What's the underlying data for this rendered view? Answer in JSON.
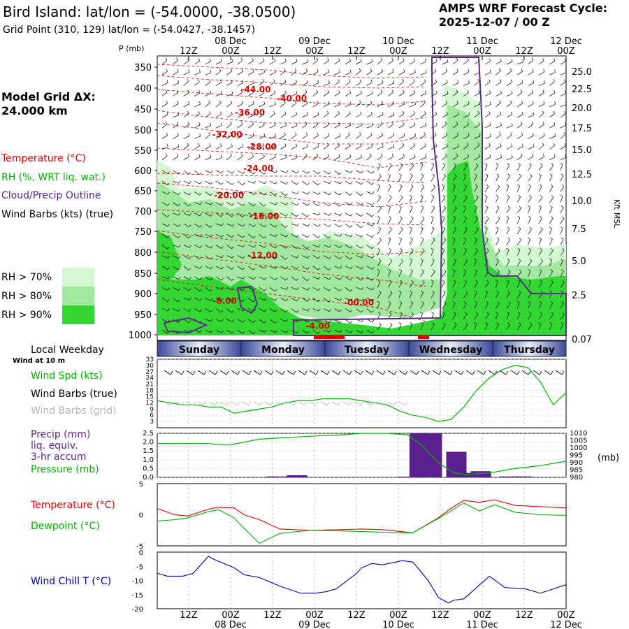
{
  "header": {
    "title": "Bird Island:  lat/lon = (-54.0000, -38.0500)",
    "grid_point": "Grid Point (310, 129) lat/lon = (-54.0427, -38.1457)",
    "cycle_label": "AMPS WRF Forecast Cycle:",
    "cycle_value": "2025-12-07 / 00  Z",
    "model_grid_label": "Model Grid ΔX:",
    "model_grid_value": " 24.000 km"
  },
  "legend": {
    "temperature": "Temperature (°C)",
    "rh": "RH (%, WRT liq. wat.)",
    "cloud": "Cloud/Precip Outline",
    "wind_barbs": "Wind Barbs (kts) (true)",
    "rh70": "RH > 70%",
    "rh80": "RH > 80%",
    "rh90": "RH > 90%",
    "rh70_color": "#d4f9d2",
    "rh80_color": "#a2e8a0",
    "rh90_color": "#34d634"
  },
  "time_axis": {
    "p_label": "P (mb)",
    "kft_label": "Kft MSL",
    "tick_labels": [
      "12Z",
      "00Z",
      "12Z",
      "00Z",
      "12Z",
      "00Z",
      "12Z",
      "00Z",
      "12Z",
      "00Z"
    ],
    "date_labels": [
      "08 Dec",
      "09 Dec",
      "10 Dec",
      "11 Dec",
      "12 Dec"
    ]
  },
  "weekday_bar": {
    "title": "Local Weekday",
    "days": [
      "Sunday",
      "Monday",
      "Tuesday",
      "Wednesday",
      "Thursday"
    ]
  },
  "chart_data": [
    {
      "type": "contour-profile",
      "title": "Time-height cross section",
      "pressure_levels": [
        350,
        400,
        450,
        500,
        550,
        600,
        650,
        700,
        750,
        800,
        850,
        900,
        950,
        1000
      ],
      "height_kft": [
        "25.0",
        "22.5",
        "20.0",
        "17.5",
        "15.0",
        "12.5",
        "10.0",
        "7.5",
        "5.0",
        "2.5",
        "0.07"
      ],
      "temperature_contour_labels": [
        {
          "label": "-44.00",
          "t": 1.3,
          "p": 410
        },
        {
          "label": "-40.00",
          "t": 1.73,
          "p": 432
        },
        {
          "label": "-36.00",
          "t": 1.23,
          "p": 465
        },
        {
          "label": "-32.00",
          "t": 0.96,
          "p": 518
        },
        {
          "label": "-28.00",
          "t": 1.37,
          "p": 548
        },
        {
          "label": "-24.00",
          "t": 1.33,
          "p": 602
        },
        {
          "label": "-20.00",
          "t": 0.98,
          "p": 668
        },
        {
          "label": "-16.00",
          "t": 1.4,
          "p": 720
        },
        {
          "label": "-12.00",
          "t": 1.38,
          "p": 814
        },
        {
          "label": "-8.00",
          "t": 0.93,
          "p": 924
        },
        {
          "label": "-4.00",
          "t": 2.04,
          "p": 985
        },
        {
          "label": "-00.00",
          "t": 2.53,
          "p": 928
        }
      ]
    },
    {
      "type": "line",
      "title": "Wind Spd (kts)",
      "label_spd": "Wind Spd (kts)",
      "label_true": "Wind Barbs (true)",
      "label_grid": "Wind Barbs (grid)",
      "sub_label": "Wind at 10 m",
      "y_ticks": [
        "33",
        "30",
        "27",
        "24",
        "21",
        "18",
        "15",
        "12",
        "9",
        "6",
        "3"
      ],
      "ylim": [
        0,
        33
      ],
      "t": [
        0,
        0.125,
        0.25,
        0.375,
        0.5,
        0.625,
        0.75,
        0.875,
        1.0,
        1.125,
        1.25,
        1.375,
        1.5,
        1.625,
        1.75,
        1.875,
        2.0,
        2.125,
        2.25,
        2.375,
        2.5,
        2.625,
        2.75,
        2.875,
        3.0,
        3.125,
        3.25,
        3.375,
        3.5,
        3.625,
        3.75,
        3.875,
        4.0
      ],
      "values": [
        13,
        12,
        11,
        11,
        10,
        10,
        7,
        8,
        9,
        10,
        12,
        13,
        13,
        14,
        14,
        14,
        13,
        12,
        11,
        8,
        6,
        5,
        3,
        4,
        10,
        18,
        24,
        28,
        30,
        29,
        22,
        11,
        17
      ]
    },
    {
      "type": "bar+line",
      "title": "Precip / Pressure",
      "label_precip": "Precip (mm)",
      "label_liq": "liq. equiv.",
      "label_accum": "3-hr accum",
      "label_pres": "Pressure (mb)",
      "unit_right": "(mb)",
      "precip_ticks": [
        "2.5",
        "2.0",
        "1.5",
        "1.0",
        "0.5",
        "0.0"
      ],
      "pressure_ticks": [
        "1010",
        "1005",
        "1000",
        "995",
        "990",
        "985",
        "980"
      ],
      "precip_t": [
        1.17,
        1.37,
        2.45,
        2.57,
        2.69,
        2.93,
        3.05,
        3.17,
        3.45,
        3.57
      ],
      "precip_values": [
        0.05,
        0.12,
        0.04,
        2.5,
        2.5,
        1.45,
        0.25,
        0.35,
        0.05,
        0.05
      ],
      "pressure_t": [
        0,
        0.5,
        0.7,
        1.0,
        1.5,
        1.8,
        2.0,
        2.25,
        2.45,
        2.6,
        2.75,
        2.9,
        3.0,
        3.25,
        3.5,
        3.75,
        4.0
      ],
      "pressure_values": [
        1003,
        1003,
        1002,
        1006,
        1008,
        1009,
        1010,
        1010,
        1009,
        1001,
        990,
        983,
        982,
        983,
        986,
        988,
        991
      ]
    },
    {
      "type": "line",
      "title": "Temperature / Dewpoint",
      "label_temp": "Temperature (°C)",
      "label_dew": "Dewpoint (°C)",
      "y_ticks": [
        "5",
        "0",
        "-5"
      ],
      "ylim": [
        -5,
        5
      ],
      "t": [
        0,
        0.17,
        0.3,
        0.5,
        0.6,
        0.75,
        0.85,
        1.0,
        1.2,
        1.5,
        1.8,
        2.0,
        2.2,
        2.5,
        2.75,
        2.87,
        3.0,
        3.15,
        3.3,
        3.5,
        3.75,
        4.0
      ],
      "temperature": [
        1.0,
        0.0,
        -0.2,
        0.9,
        1.2,
        1.1,
        0,
        -0.8,
        -2.3,
        -2.5,
        -2.4,
        -2.3,
        -2.4,
        -2.9,
        -0.5,
        1.0,
        2.3,
        2.0,
        2.4,
        1.5,
        1.3,
        1.1
      ],
      "dewpoint": [
        -1.0,
        -0.8,
        -0.5,
        0.5,
        0.8,
        -0.5,
        -2.2,
        -4.6,
        -3.0,
        -2.5,
        -2.6,
        -2.7,
        -2.8,
        -2.9,
        -0.6,
        0.6,
        1.9,
        0.6,
        1.6,
        0.4,
        0.0,
        -0.1
      ]
    },
    {
      "type": "line",
      "title": "Wind Chill T (°C)",
      "label": "Wind Chill T (°C)",
      "y_ticks": [
        "0",
        "-5",
        "-10",
        "-15",
        "-20"
      ],
      "ylim": [
        -20,
        0
      ],
      "t": [
        0,
        0.1,
        0.25,
        0.35,
        0.5,
        0.55,
        0.75,
        0.85,
        1.0,
        1.2,
        1.4,
        1.55,
        1.65,
        1.75,
        1.95,
        2.0,
        2.1,
        2.2,
        2.4,
        2.5,
        2.65,
        2.75,
        2.85,
        2.9,
        3.0,
        3.25,
        3.4,
        3.6,
        3.75,
        4.0
      ],
      "values": [
        -7.5,
        -8.5,
        -8.5,
        -7.5,
        -1.5,
        -2.5,
        -5.5,
        -8,
        -9,
        -12,
        -14.5,
        -14.5,
        -14,
        -13,
        -7.5,
        -5.5,
        -4,
        -4.5,
        -3,
        -3.5,
        -10,
        -16,
        -18,
        -17,
        -16.5,
        -8.5,
        -12.5,
        -13,
        -14.5,
        -11.5
      ]
    }
  ],
  "colors": {
    "temperature": "#e00000",
    "dewpoint": "#00b400",
    "wind_spd": "#00b400",
    "wind_chill": "#0000b0",
    "precip": "#5a1f8c",
    "cloud_outline": "#5a2b8a",
    "red_label": "#e00000",
    "grid_label": "#b5b5b5",
    "purple_label": "#5a1f8c"
  }
}
